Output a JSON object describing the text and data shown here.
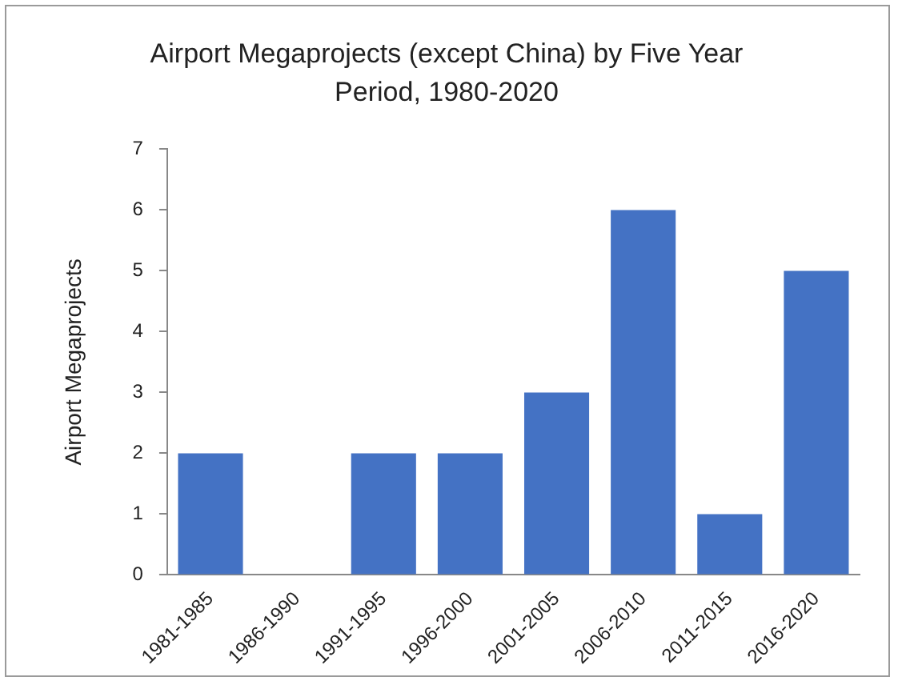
{
  "chart_data": {
    "type": "bar",
    "title": "Airport Megaprojects (except China) by Five Year Period, 1980-2020",
    "ylabel": "Airport Megaprojects",
    "categories": [
      "1981-1985",
      "1986-1990",
      "1991-1995",
      "1996-2000",
      "2001-2005",
      "2006-2010",
      "2011-2015",
      "2016-2020"
    ],
    "values": [
      2,
      0,
      2,
      2,
      3,
      6,
      1,
      5
    ],
    "color": "#4472c4",
    "ylim": [
      0,
      7
    ],
    "yticks": [
      0,
      1,
      2,
      3,
      4,
      5,
      6,
      7
    ],
    "grid": false,
    "legend": false
  }
}
